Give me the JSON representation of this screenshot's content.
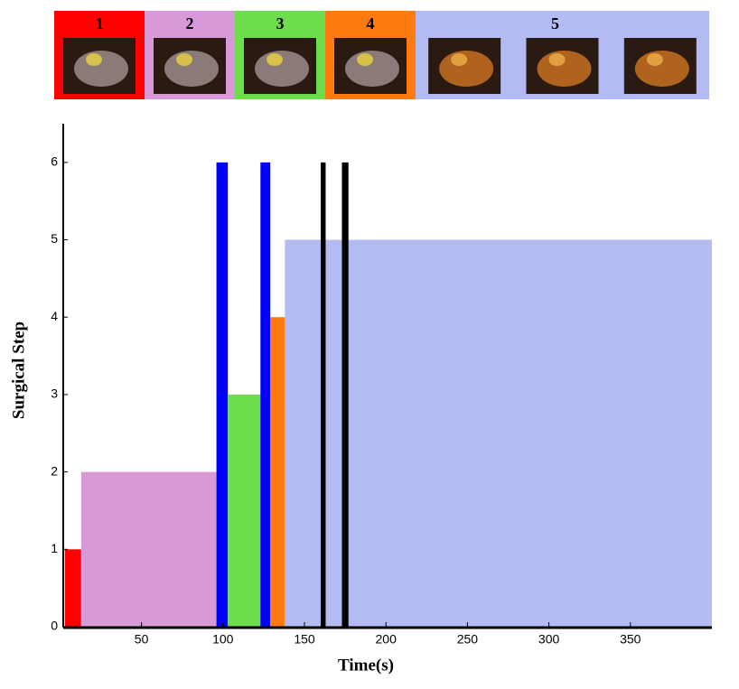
{
  "chart_data": {
    "type": "range-bar",
    "phases": [
      {
        "label": "1",
        "color": "#ff0000"
      },
      {
        "label": "2",
        "color": "#d899d8"
      },
      {
        "label": "3",
        "color": "#6ddd4b"
      },
      {
        "label": "4",
        "color": "#ff7b0f"
      },
      {
        "label": "5",
        "color": "#b2bbf2"
      }
    ],
    "segments": [
      {
        "x": [
          3,
          13
        ],
        "value": 1,
        "color": "#ff0000"
      },
      {
        "x": [
          13,
          96
        ],
        "value": 2,
        "color": "#d899d8"
      },
      {
        "x": [
          96,
          103
        ],
        "value": 6,
        "color": "#0000ff"
      },
      {
        "x": [
          103,
          123
        ],
        "value": 3,
        "color": "#6ddd4b"
      },
      {
        "x": [
          123,
          129
        ],
        "value": 6,
        "color": "#0000ff"
      },
      {
        "x": [
          129,
          138
        ],
        "value": 4,
        "color": "#ff7b0f"
      },
      {
        "x": [
          138,
          400
        ],
        "value": 5,
        "color": "#b2bbf2"
      },
      {
        "x": [
          160,
          163
        ],
        "value": 6,
        "color": "#000000"
      },
      {
        "x": [
          173,
          177
        ],
        "value": 6,
        "color": "#000000"
      }
    ],
    "xlabel": "Time(s)",
    "ylabel": "Surgical Step",
    "xlim": [
      2,
      400
    ],
    "xticks": [
      50,
      100,
      150,
      200,
      250,
      300,
      350
    ],
    "ylim": [
      0,
      6.5
    ],
    "yticks": [
      0,
      1,
      2,
      3,
      4,
      5,
      6
    ]
  }
}
